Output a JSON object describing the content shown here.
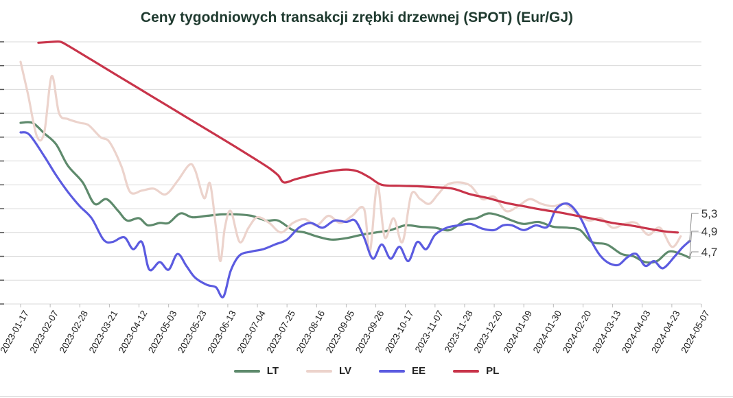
{
  "chart_data": {
    "type": "line",
    "title": "Ceny tygodniowych transakcji zrębki drzewnej (SPOT) (Eur/GJ)",
    "xlabel": "",
    "ylabel": "",
    "ylim": [
      4.0,
      9.6
    ],
    "grid": true,
    "legend_position": "bottom",
    "x_ticks": [
      "2023-01-17",
      "2023-02-07",
      "2023-02-28",
      "2023-03-21",
      "2023-04-12",
      "2023-05-03",
      "2023-05-23",
      "2023-06-13",
      "2023-07-04",
      "2023-07-25",
      "2023-08-16",
      "2023-09-05",
      "2023-09-26",
      "2023-10-17",
      "2023-11-07",
      "2023-11-28",
      "2023-12-20",
      "2024-01-09",
      "2024-01-30",
      "2024-02-20",
      "2024-03-13",
      "2024-04-03",
      "2024-04-23",
      "2024-05-07"
    ],
    "end_labels": [
      "5,3",
      "4,9",
      "4,7"
    ],
    "series": [
      {
        "name": "LT",
        "color": "#5e8a6c",
        "points": [
          [
            0,
            7.8
          ],
          [
            0.4,
            7.8
          ],
          [
            0.8,
            7.58
          ],
          [
            1.2,
            7.35
          ],
          [
            1.6,
            6.9
          ],
          [
            2.1,
            6.55
          ],
          [
            2.5,
            6.1
          ],
          [
            2.9,
            6.2
          ],
          [
            3.3,
            5.95
          ],
          [
            3.6,
            5.75
          ],
          [
            4.0,
            5.8
          ],
          [
            4.3,
            5.65
          ],
          [
            4.7,
            5.7
          ],
          [
            5.0,
            5.7
          ],
          [
            5.4,
            5.9
          ],
          [
            5.8,
            5.82
          ],
          [
            6.3,
            5.85
          ],
          [
            6.8,
            5.88
          ],
          [
            7.3,
            5.88
          ],
          [
            7.8,
            5.85
          ],
          [
            8.3,
            5.75
          ],
          [
            8.7,
            5.75
          ],
          [
            9.2,
            5.55
          ],
          [
            9.6,
            5.5
          ],
          [
            10.0,
            5.42
          ],
          [
            10.5,
            5.35
          ],
          [
            11.0,
            5.38
          ],
          [
            11.5,
            5.45
          ],
          [
            12.0,
            5.5
          ],
          [
            12.5,
            5.55
          ],
          [
            13.0,
            5.65
          ],
          [
            13.5,
            5.62
          ],
          [
            14.0,
            5.6
          ],
          [
            14.5,
            5.55
          ],
          [
            15.0,
            5.75
          ],
          [
            15.4,
            5.8
          ],
          [
            15.8,
            5.9
          ],
          [
            16.2,
            5.85
          ],
          [
            16.6,
            5.75
          ],
          [
            17.0,
            5.68
          ],
          [
            17.5,
            5.72
          ],
          [
            18.0,
            5.62
          ],
          [
            18.5,
            5.6
          ],
          [
            18.9,
            5.55
          ],
          [
            19.3,
            5.3
          ],
          [
            19.8,
            5.25
          ],
          [
            20.3,
            5.05
          ],
          [
            20.7,
            5.0
          ],
          [
            21.1,
            4.88
          ],
          [
            21.5,
            4.9
          ],
          [
            21.9,
            5.1
          ],
          [
            22.3,
            5.05
          ],
          [
            22.6,
            4.97
          ]
        ]
      },
      {
        "name": "LV",
        "color": "#ecd3cc",
        "points": [
          [
            0,
            9.08
          ],
          [
            0.25,
            8.4
          ],
          [
            0.55,
            7.52
          ],
          [
            0.8,
            7.6
          ],
          [
            1.05,
            8.78
          ],
          [
            1.3,
            8.0
          ],
          [
            1.6,
            7.88
          ],
          [
            2.0,
            7.8
          ],
          [
            2.3,
            7.75
          ],
          [
            2.7,
            7.5
          ],
          [
            3.0,
            7.4
          ],
          [
            3.4,
            6.9
          ],
          [
            3.7,
            6.35
          ],
          [
            4.1,
            6.38
          ],
          [
            4.5,
            6.42
          ],
          [
            4.9,
            6.3
          ],
          [
            5.3,
            6.58
          ],
          [
            5.7,
            6.92
          ],
          [
            5.9,
            6.8
          ],
          [
            6.2,
            6.22
          ],
          [
            6.4,
            6.53
          ],
          [
            6.6,
            5.6
          ],
          [
            6.75,
            4.9
          ],
          [
            6.9,
            5.6
          ],
          [
            7.1,
            5.95
          ],
          [
            7.4,
            5.3
          ],
          [
            7.7,
            5.6
          ],
          [
            8.0,
            5.82
          ],
          [
            8.4,
            5.7
          ],
          [
            8.8,
            5.5
          ],
          [
            9.2,
            5.7
          ],
          [
            9.6,
            5.78
          ],
          [
            10.0,
            5.65
          ],
          [
            10.4,
            5.85
          ],
          [
            10.8,
            5.7
          ],
          [
            11.2,
            5.85
          ],
          [
            11.6,
            6.0
          ],
          [
            11.8,
            5.1
          ],
          [
            12.05,
            6.5
          ],
          [
            12.3,
            5.4
          ],
          [
            12.6,
            5.8
          ],
          [
            12.9,
            5.3
          ],
          [
            13.2,
            6.3
          ],
          [
            13.5,
            6.2
          ],
          [
            13.8,
            6.1
          ],
          [
            14.1,
            6.3
          ],
          [
            14.4,
            6.5
          ],
          [
            14.8,
            6.55
          ],
          [
            15.2,
            6.48
          ],
          [
            15.6,
            6.2
          ],
          [
            16.0,
            6.25
          ],
          [
            16.4,
            5.95
          ],
          [
            16.8,
            6.05
          ],
          [
            17.2,
            6.2
          ],
          [
            17.6,
            6.1
          ],
          [
            18.0,
            6.05
          ],
          [
            18.4,
            6.1
          ],
          [
            18.8,
            5.9
          ],
          [
            19.2,
            5.75
          ],
          [
            19.6,
            5.8
          ],
          [
            20.0,
            5.6
          ],
          [
            20.4,
            5.68
          ],
          [
            20.8,
            5.7
          ],
          [
            21.2,
            5.45
          ],
          [
            21.6,
            5.6
          ],
          [
            22.0,
            5.2
          ],
          [
            22.3,
            5.42
          ]
        ]
      },
      {
        "name": "EE",
        "color": "#5b5be0",
        "points": [
          [
            0,
            7.6
          ],
          [
            0.3,
            7.55
          ],
          [
            0.8,
            7.1
          ],
          [
            1.2,
            6.7
          ],
          [
            1.6,
            6.35
          ],
          [
            2.0,
            6.05
          ],
          [
            2.4,
            5.8
          ],
          [
            2.8,
            5.35
          ],
          [
            3.1,
            5.3
          ],
          [
            3.5,
            5.4
          ],
          [
            3.8,
            5.15
          ],
          [
            4.1,
            5.3
          ],
          [
            4.35,
            4.72
          ],
          [
            4.7,
            4.88
          ],
          [
            5.0,
            4.72
          ],
          [
            5.3,
            5.05
          ],
          [
            5.6,
            4.8
          ],
          [
            5.9,
            4.55
          ],
          [
            6.3,
            4.4
          ],
          [
            6.6,
            4.35
          ],
          [
            6.85,
            4.15
          ],
          [
            7.1,
            4.7
          ],
          [
            7.4,
            5.02
          ],
          [
            7.8,
            5.1
          ],
          [
            8.2,
            5.15
          ],
          [
            8.6,
            5.25
          ],
          [
            9.0,
            5.35
          ],
          [
            9.4,
            5.6
          ],
          [
            9.8,
            5.7
          ],
          [
            10.2,
            5.6
          ],
          [
            10.6,
            5.75
          ],
          [
            11.0,
            5.72
          ],
          [
            11.3,
            5.75
          ],
          [
            11.6,
            5.4
          ],
          [
            11.9,
            4.95
          ],
          [
            12.2,
            5.25
          ],
          [
            12.5,
            4.95
          ],
          [
            12.8,
            5.2
          ],
          [
            13.1,
            4.9
          ],
          [
            13.4,
            5.3
          ],
          [
            13.7,
            5.15
          ],
          [
            14.0,
            5.45
          ],
          [
            14.4,
            5.6
          ],
          [
            14.8,
            5.65
          ],
          [
            15.2,
            5.68
          ],
          [
            15.6,
            5.58
          ],
          [
            16.0,
            5.55
          ],
          [
            16.3,
            5.65
          ],
          [
            16.6,
            5.65
          ],
          [
            17.0,
            5.55
          ],
          [
            17.4,
            5.65
          ],
          [
            17.8,
            5.62
          ],
          [
            18.1,
            6.0
          ],
          [
            18.5,
            6.1
          ],
          [
            18.9,
            5.82
          ],
          [
            19.3,
            5.3
          ],
          [
            19.6,
            5.0
          ],
          [
            19.9,
            4.85
          ],
          [
            20.2,
            4.82
          ],
          [
            20.5,
            4.98
          ],
          [
            20.8,
            5.05
          ],
          [
            21.1,
            4.8
          ],
          [
            21.4,
            4.9
          ],
          [
            21.7,
            4.75
          ],
          [
            22.1,
            5.0
          ],
          [
            22.35,
            5.18
          ],
          [
            22.6,
            5.32
          ]
        ]
      },
      {
        "name": "PL",
        "color": "#c8344a",
        "points": [
          [
            0.6,
            9.48
          ],
          [
            1.1,
            9.5
          ],
          [
            1.35,
            9.5
          ],
          [
            1.6,
            9.42
          ],
          [
            2.4,
            9.12
          ],
          [
            3.2,
            8.82
          ],
          [
            4.0,
            8.52
          ],
          [
            4.8,
            8.22
          ],
          [
            5.6,
            7.92
          ],
          [
            6.4,
            7.62
          ],
          [
            7.2,
            7.32
          ],
          [
            7.9,
            7.05
          ],
          [
            8.4,
            6.85
          ],
          [
            8.7,
            6.7
          ],
          [
            8.9,
            6.55
          ],
          [
            9.3,
            6.62
          ],
          [
            9.8,
            6.7
          ],
          [
            10.4,
            6.78
          ],
          [
            11.0,
            6.82
          ],
          [
            11.4,
            6.78
          ],
          [
            11.8,
            6.65
          ],
          [
            12.2,
            6.5
          ],
          [
            12.8,
            6.48
          ],
          [
            13.4,
            6.47
          ],
          [
            14.0,
            6.45
          ],
          [
            14.6,
            6.42
          ],
          [
            15.2,
            6.3
          ],
          [
            15.8,
            6.22
          ],
          [
            16.4,
            6.12
          ],
          [
            17.0,
            6.05
          ],
          [
            17.6,
            5.98
          ],
          [
            18.2,
            5.92
          ],
          [
            18.8,
            5.85
          ],
          [
            19.4,
            5.78
          ],
          [
            20.0,
            5.7
          ],
          [
            20.6,
            5.65
          ],
          [
            21.2,
            5.58
          ],
          [
            21.8,
            5.52
          ],
          [
            22.2,
            5.5
          ]
        ]
      }
    ]
  }
}
